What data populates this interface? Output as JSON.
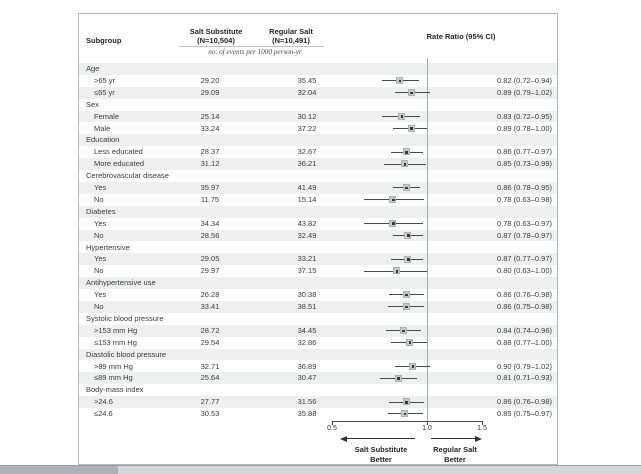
{
  "header": {
    "subgroup": "Subgroup",
    "col2_line1": "Salt Substitute",
    "col2_line2": "(N=10,504)",
    "col3_line1": "Regular Salt",
    "col3_line2": "(N=10,491)",
    "rate_ratio": "Rate Ratio (95% CI)",
    "events_note": "no. of events per 1000 person-yr"
  },
  "axis": {
    "ticks": [
      "0.5",
      "1.0",
      "1.5"
    ],
    "left_label_line1": "Salt Substitute",
    "left_label_line2": "Better",
    "right_label_line1": "Regular Salt",
    "right_label_line2": "Better"
  },
  "colors": {
    "band": "#edf0ef",
    "border": "#b3b8bb",
    "text": "#3b3b3b",
    "reference_line": "#a6abae",
    "marker_fill": "#c6c8ca",
    "marker_dot": "#3a3a3a",
    "ci_line": "#4a4a4a"
  },
  "chart_data": {
    "type": "forest",
    "x_scale": "log",
    "x_ticks": [
      0.5,
      1.0,
      1.5
    ],
    "x_range": [
      0.5,
      1.5
    ],
    "reference_line": 1.0,
    "value_header": "Rate Ratio (95% CI)",
    "unit_note": "no. of events per 1000 person-yr",
    "arms": {
      "salt_substitute": "Salt Substitute (N=10,504)",
      "regular_salt": "Regular Salt (N=10,491)"
    },
    "direction_labels": {
      "left": "Salt Substitute Better",
      "right": "Regular Salt Better"
    },
    "groups": [
      {
        "label": "Age",
        "items": [
          {
            "label": ">65 yr",
            "salt_substitute": "29.20",
            "regular_salt": "35.45",
            "rr": 0.82,
            "ci_low": 0.72,
            "ci_high": 0.94,
            "rr_text": "0.82 (0.72–0.94)"
          },
          {
            "label": "≤65 yr",
            "salt_substitute": "29.09",
            "regular_salt": "32.04",
            "rr": 0.89,
            "ci_low": 0.79,
            "ci_high": 1.02,
            "rr_text": "0.89 (0.79–1.02)"
          }
        ]
      },
      {
        "label": "Sex",
        "items": [
          {
            "label": "Female",
            "salt_substitute": "25.14",
            "regular_salt": "30.12",
            "rr": 0.83,
            "ci_low": 0.72,
            "ci_high": 0.95,
            "rr_text": "0.83 (0.72–0.95)"
          },
          {
            "label": "Male",
            "salt_substitute": "33.24",
            "regular_salt": "37.22",
            "rr": 0.89,
            "ci_low": 0.78,
            "ci_high": 1.0,
            "rr_text": "0.89 (0.78–1.00)"
          }
        ]
      },
      {
        "label": "Education",
        "items": [
          {
            "label": "Less educated",
            "salt_substitute": "28.37",
            "regular_salt": "32.67",
            "rr": 0.86,
            "ci_low": 0.77,
            "ci_high": 0.97,
            "rr_text": "0.86 (0.77–0.97)"
          },
          {
            "label": "More educated",
            "salt_substitute": "31.12",
            "regular_salt": "36.21",
            "rr": 0.85,
            "ci_low": 0.73,
            "ci_high": 0.99,
            "rr_text": "0.85 (0.73–0.99)"
          }
        ]
      },
      {
        "label": "Cerebrovascular disease",
        "items": [
          {
            "label": "Yes",
            "salt_substitute": "35.97",
            "regular_salt": "41.49",
            "rr": 0.86,
            "ci_low": 0.78,
            "ci_high": 0.95,
            "rr_text": "0.86 (0.78–0.95)"
          },
          {
            "label": "No",
            "salt_substitute": "11.75",
            "regular_salt": "15.14",
            "rr": 0.78,
            "ci_low": 0.63,
            "ci_high": 0.98,
            "rr_text": "0.78 (0.63–0.98)"
          }
        ]
      },
      {
        "label": "Diabetes",
        "items": [
          {
            "label": "Yes",
            "salt_substitute": "34.34",
            "regular_salt": "43.82",
            "rr": 0.78,
            "ci_low": 0.63,
            "ci_high": 0.97,
            "rr_text": "0.78 (0.63–0.97)"
          },
          {
            "label": "No",
            "salt_substitute": "28.56",
            "regular_salt": "32.49",
            "rr": 0.87,
            "ci_low": 0.78,
            "ci_high": 0.97,
            "rr_text": "0.87 (0.78–0.97)"
          }
        ]
      },
      {
        "label": "Hypertensive",
        "items": [
          {
            "label": "Yes",
            "salt_substitute": "29.05",
            "regular_salt": "33.21",
            "rr": 0.87,
            "ci_low": 0.77,
            "ci_high": 0.97,
            "rr_text": "0.87 (0.77–0.97)"
          },
          {
            "label": "No",
            "salt_substitute": "29.97",
            "regular_salt": "37.15",
            "rr": 0.8,
            "ci_low": 0.63,
            "ci_high": 1.0,
            "rr_text": "0.80 (0.63–1.00)"
          }
        ]
      },
      {
        "label": "Antihypertensive use",
        "items": [
          {
            "label": "Yes",
            "salt_substitute": "26.28",
            "regular_salt": "30.38",
            "rr": 0.86,
            "ci_low": 0.76,
            "ci_high": 0.98,
            "rr_text": "0.86 (0.76–0.98)"
          },
          {
            "label": "No",
            "salt_substitute": "33.41",
            "regular_salt": "38.51",
            "rr": 0.86,
            "ci_low": 0.75,
            "ci_high": 0.98,
            "rr_text": "0.86 (0.75–0.98)"
          }
        ]
      },
      {
        "label": "Systolic blood pressure",
        "items": [
          {
            "label": ">153 mm Hg",
            "salt_substitute": "28.72",
            "regular_salt": "34.45",
            "rr": 0.84,
            "ci_low": 0.74,
            "ci_high": 0.96,
            "rr_text": "0.84 (0.74–0.96)"
          },
          {
            "label": "≤153 mm Hg",
            "salt_substitute": "29.54",
            "regular_salt": "32.86",
            "rr": 0.88,
            "ci_low": 0.77,
            "ci_high": 1.0,
            "rr_text": "0.88 (0.77–1.00)"
          }
        ]
      },
      {
        "label": "Diastolic blood pressure",
        "items": [
          {
            "label": ">89 mm Hg",
            "salt_substitute": "32.71",
            "regular_salt": "36.89",
            "rr": 0.9,
            "ci_low": 0.79,
            "ci_high": 1.02,
            "rr_text": "0.90 (0.79–1.02)"
          },
          {
            "label": "≤89 mm Hg",
            "salt_substitute": "25.64",
            "regular_salt": "30.47",
            "rr": 0.81,
            "ci_low": 0.71,
            "ci_high": 0.93,
            "rr_text": "0.81 (0.71–0.93)"
          }
        ]
      },
      {
        "label": "Body-mass index",
        "items": [
          {
            "label": ">24.6",
            "salt_substitute": "27.77",
            "regular_salt": "31.56",
            "rr": 0.86,
            "ci_low": 0.76,
            "ci_high": 0.98,
            "rr_text": "0.86 (0.76–0.98)"
          },
          {
            "label": "≤24.6",
            "salt_substitute": "30.53",
            "regular_salt": "35.88",
            "rr": 0.85,
            "ci_low": 0.75,
            "ci_high": 0.97,
            "rr_text": "0.85 (0.75–0.97)"
          }
        ]
      }
    ]
  }
}
